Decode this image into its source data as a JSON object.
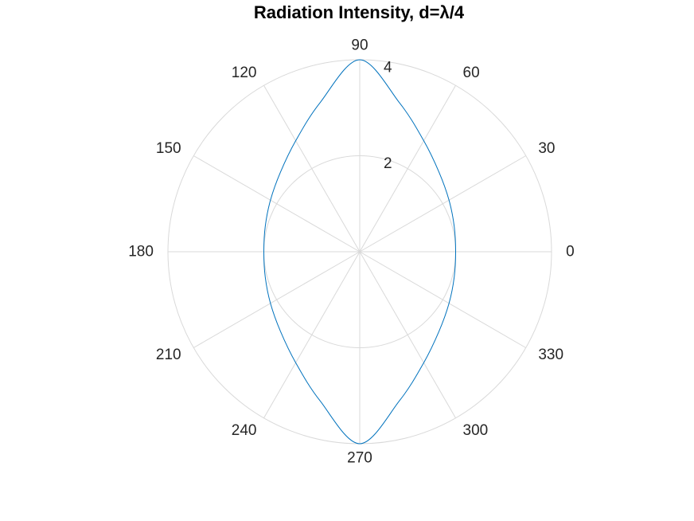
{
  "chart_data": {
    "type": "line",
    "projection": "polar",
    "title": "Radiation Intensity, d=λ/4",
    "theta_unit": "degrees",
    "theta_ticks": [
      0,
      30,
      60,
      90,
      120,
      150,
      180,
      210,
      240,
      270,
      300,
      330
    ],
    "theta_tick_labels": [
      "0",
      "30",
      "60",
      "90",
      "120",
      "150",
      "180",
      "210",
      "240",
      "270",
      "300",
      "330"
    ],
    "r_ticks": [
      2,
      4
    ],
    "r_tick_labels": [
      "2",
      "4"
    ],
    "rlim": [
      0,
      4
    ],
    "grid": true,
    "series": [
      {
        "color": "#0072bd",
        "theta": [
          0,
          15,
          30,
          45,
          60,
          75,
          90,
          105,
          120,
          135,
          150,
          165,
          180,
          195,
          210,
          225,
          240,
          255,
          270,
          285,
          300,
          315,
          330,
          345,
          360
        ],
        "r": [
          2.0,
          2.04,
          2.15,
          2.34,
          2.67,
          3.21,
          4.0,
          3.21,
          2.67,
          2.34,
          2.15,
          2.04,
          2.0,
          2.04,
          2.15,
          2.34,
          2.67,
          3.21,
          4.0,
          3.21,
          2.67,
          2.34,
          2.15,
          2.04,
          2.0
        ]
      }
    ]
  }
}
